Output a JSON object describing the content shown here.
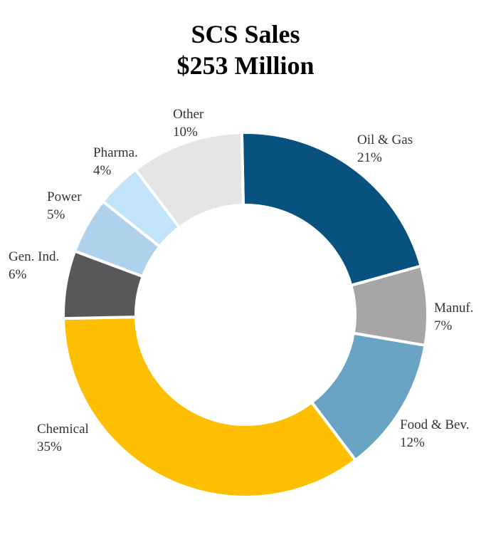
{
  "chart_data": {
    "type": "pie",
    "donut": true,
    "title": "SCS Sales",
    "subtitle": "$253 Million",
    "slices": [
      {
        "label": "Oil & Gas",
        "value": 21,
        "pct_label": "21%",
        "color": "#07527f"
      },
      {
        "label": "Manuf.",
        "value": 7,
        "pct_label": "7%",
        "color": "#a6a6a6"
      },
      {
        "label": "Food & Bev.",
        "value": 12,
        "pct_label": "12%",
        "color": "#68a3c3"
      },
      {
        "label": "Chemical",
        "value": 35,
        "pct_label": "35%",
        "color": "#fdbf00"
      },
      {
        "label": "Gen. Ind.",
        "value": 6,
        "pct_label": "6%",
        "color": "#58585a"
      },
      {
        "label": "Power",
        "value": 5,
        "pct_label": "5%",
        "color": "#aed1ec"
      },
      {
        "label": "Pharma.",
        "value": 4,
        "pct_label": "4%",
        "color": "#c2e4fa"
      },
      {
        "label": "Other",
        "value": 10,
        "pct_label": "10%",
        "color": "#e5e5e5"
      }
    ]
  }
}
